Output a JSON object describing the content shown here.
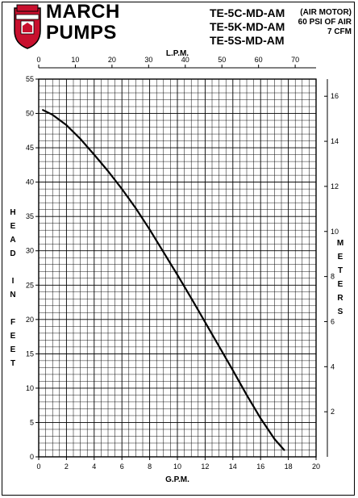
{
  "brand": {
    "line1": "MARCH",
    "line2": "PUMPS"
  },
  "models": [
    "TE-5C-MD-AM",
    "TE-5K-MD-AM",
    "TE-5S-MD-AM"
  ],
  "specs": [
    "(AIR MOTOR)",
    "60 PSI OF AIR",
    "7 CFM"
  ],
  "colors": {
    "logo_red": "#c8102e",
    "grid": "#000000",
    "curve": "#000000"
  },
  "chart_data": {
    "type": "line",
    "title": "",
    "xlabel": "G.P.M.",
    "x2label": "L.P.M.",
    "ylabel": "HEAD IN FEET",
    "y2label": "METERS",
    "xlim": [
      0,
      20
    ],
    "ylim": [
      0,
      55
    ],
    "x2lim": [
      0,
      75.7
    ],
    "y2lim": [
      0,
      16.76
    ],
    "xticks": [
      0,
      2,
      4,
      6,
      8,
      10,
      12,
      14,
      16,
      18,
      20
    ],
    "yticks": [
      0,
      5,
      10,
      15,
      20,
      25,
      30,
      35,
      40,
      45,
      50,
      55
    ],
    "x2ticks": [
      0,
      10,
      20,
      30,
      40,
      50,
      60,
      70
    ],
    "y2ticks": [
      2,
      4,
      6,
      8,
      10,
      12,
      14,
      16
    ],
    "grid": true,
    "series": [
      {
        "x": [
          0.3,
          1,
          2,
          3,
          4,
          5,
          6,
          7,
          8,
          9,
          10,
          11,
          12,
          13,
          14,
          15,
          16,
          17,
          17.7
        ],
        "y": [
          50.5,
          49.8,
          48.3,
          46.3,
          44.0,
          41.6,
          39.0,
          36.2,
          33.1,
          29.8,
          26.5,
          23.1,
          19.6,
          16.1,
          12.6,
          9.0,
          5.6,
          2.6,
          1.0
        ]
      }
    ]
  }
}
